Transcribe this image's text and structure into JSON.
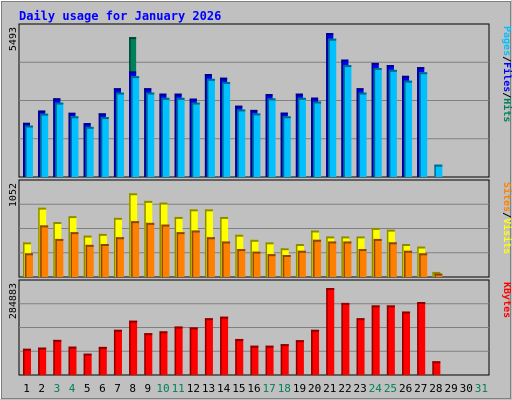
{
  "chart_data": {
    "type": "bar",
    "title": "Daily usage for January 2026",
    "days": [
      "1",
      "2",
      "3",
      "4",
      "5",
      "6",
      "7",
      "8",
      "9",
      "10",
      "11",
      "12",
      "13",
      "14",
      "15",
      "16",
      "17",
      "18",
      "19",
      "20",
      "21",
      "22",
      "23",
      "24",
      "25",
      "26",
      "27",
      "28",
      "29",
      "30",
      "31"
    ],
    "weekend_days": [
      "3",
      "4",
      "10",
      "11",
      "17",
      "18",
      "24",
      "25",
      "31"
    ],
    "panels": [
      {
        "name": "hits-files-pages",
        "max_label": "5493",
        "ymax": 5493,
        "series": [
          {
            "name": "Hits",
            "color": "#00805c",
            "values": [
              2050,
              2520,
              2980,
              2430,
              2040,
              2410,
              3360,
              5300,
              3360,
              3160,
              3160,
              2970,
              3900,
              3760,
              2700,
              2540,
              3140,
              2440,
              3160,
              3010,
              5450,
              4450,
              3360,
              4320,
              4240,
              3830,
              4160,
              0,
              0,
              0,
              0
            ]
          },
          {
            "name": "Files",
            "color": "#0000ff",
            "values": [
              2050,
              2520,
              2980,
              2430,
              2040,
              2410,
              3360,
              4000,
              3360,
              3160,
              3160,
              2970,
              3900,
              3760,
              2700,
              2540,
              3140,
              2440,
              3160,
              3010,
              5450,
              4450,
              3360,
              4320,
              4240,
              3830,
              4160,
              0,
              0,
              0,
              0
            ]
          },
          {
            "name": "Pages",
            "color": "#00c0ff",
            "values": [
              1950,
              2400,
              2820,
              2300,
              1900,
              2270,
              3200,
              3820,
              3200,
              3000,
              3000,
              2820,
              3720,
              3600,
              2560,
              2410,
              2980,
              2300,
              3000,
              2860,
              5240,
              4240,
              3200,
              4130,
              4060,
              3650,
              3970,
              470,
              0,
              0,
              0
            ]
          }
        ]
      },
      {
        "name": "visits-sites",
        "max_label": "1052",
        "ymax": 1052,
        "series": [
          {
            "name": "Visits",
            "color": "#ffff00",
            "values": [
              410,
              820,
              650,
              720,
              490,
              510,
              700,
              990,
              900,
              880,
              710,
              800,
              800,
              710,
              500,
              440,
              410,
              340,
              390,
              550,
              480,
              480,
              480,
              580,
              560,
              390,
              360,
              60,
              0,
              0,
              0
            ]
          },
          {
            "name": "Sites",
            "color": "#ff8000",
            "values": [
              280,
              610,
              450,
              530,
              380,
              390,
              470,
              660,
              640,
              620,
              530,
              550,
              470,
              420,
              330,
              300,
              270,
              260,
              310,
              440,
              420,
              420,
              330,
              450,
              410,
              310,
              280,
              40,
              0,
              0,
              0
            ]
          }
        ]
      },
      {
        "name": "kbytes",
        "max_label": "284883",
        "ymax": 284883,
        "series": [
          {
            "name": "KBytes",
            "color": "#ff0000",
            "values": [
              86000,
              90000,
              115000,
              93000,
              70000,
              92000,
              148000,
              178000,
              137000,
              143000,
              159000,
              156000,
              186000,
              191000,
              118000,
              96000,
              96000,
              101000,
              114000,
              148000,
              284883,
              236000,
              186000,
              228000,
              228000,
              208000,
              239000,
              45000,
              0,
              0,
              0
            ]
          }
        ]
      }
    ],
    "legend_separator": "/"
  }
}
